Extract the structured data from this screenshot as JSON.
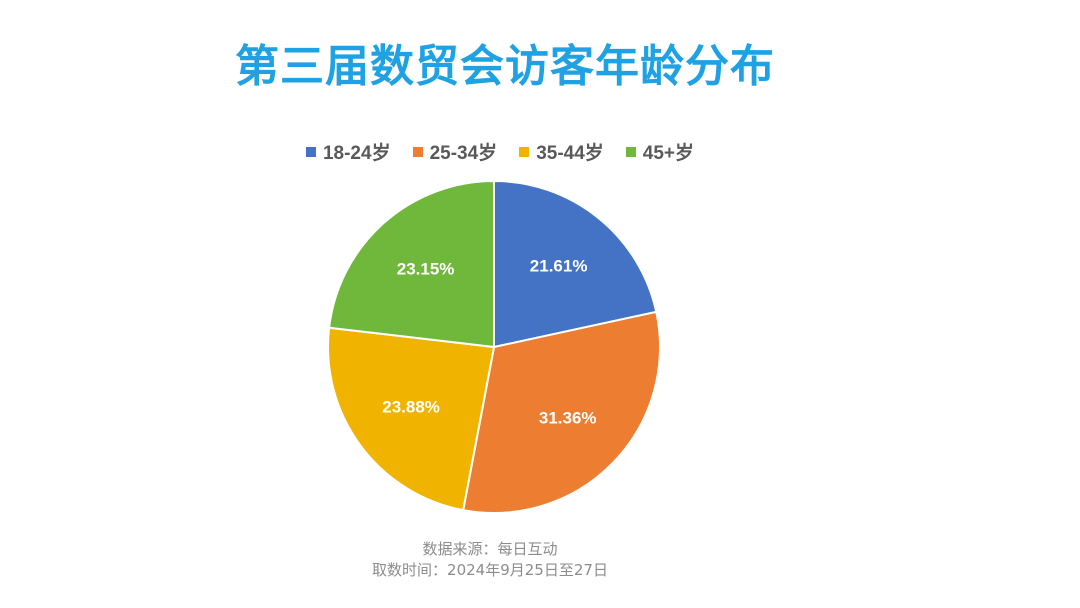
{
  "chart_data": {
    "type": "pie",
    "title": "第三届数贸会访客年龄分布",
    "categories": [
      "18-24岁",
      "25-34岁",
      "35-44岁",
      "45+岁"
    ],
    "values": [
      21.61,
      31.36,
      23.88,
      23.15
    ],
    "labels": [
      "21.61%",
      "31.36%",
      "23.88%",
      "23.15%"
    ],
    "colors": [
      "#4472c4",
      "#ed7d31",
      "#f0b400",
      "#70b83c"
    ],
    "legend_position": "top"
  },
  "footer": {
    "source": "数据来源：每日互动",
    "period": "取数时间：2024年9月25日至27日"
  }
}
